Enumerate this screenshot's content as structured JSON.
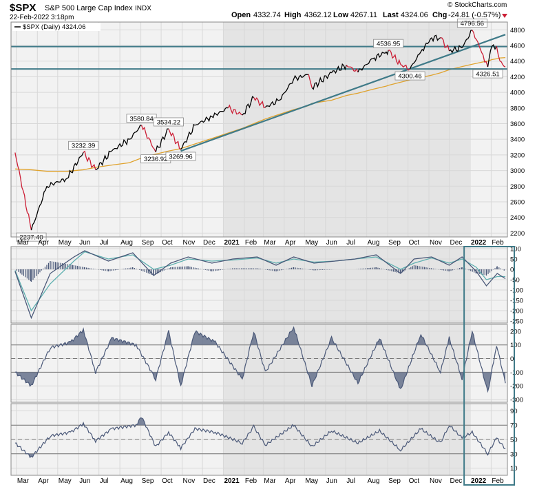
{
  "header": {
    "symbol": "$SPX",
    "name": "S&P 500 Large Cap Index",
    "exchange": "INDX",
    "date": "22-Feb-2022 3:18pm",
    "open_label": "Open",
    "open": "4332.74",
    "high_label": "High",
    "high": "4362.12",
    "low_label": "Low",
    "low": "4267.11",
    "last_label": "Last",
    "last": "4324.06",
    "chg_label": "Chg",
    "chg": "-24.81 (-0.57%)",
    "watermark": "© StockCharts.com"
  },
  "legend": {
    "label": "$SPX (Daily) 4324.06"
  },
  "colors": {
    "price_up": "#000000",
    "price_down": "#cc1f36",
    "ma": "#e0a32e",
    "trendline": "#3f7a88",
    "indicator_line": "#4a5878",
    "indicator_fill": "#66728c",
    "shade_dark": "#e4e4e4",
    "shade_light": "#f2f2f2",
    "highlight_box": "#3f7a88"
  },
  "x_axis": {
    "top_labels": [
      "Mar",
      "Apr",
      "May",
      "Jun",
      "Jul",
      "Aug",
      "Sep",
      "Oct",
      "Nov",
      "Dec",
      "2021",
      "Feb",
      "Mar",
      "Apr",
      "May",
      "Jun",
      "Jul",
      "Aug",
      "Sep",
      "Oct",
      "Nov",
      "Dec",
      "2022",
      "Feb"
    ],
    "bottom_labels": [
      "Mar",
      "Apr",
      "May",
      "Jun",
      "Jul",
      "Aug",
      "Sep",
      "Oct",
      "Nov",
      "Dec",
      "2021",
      "Feb",
      "Mar",
      "Apr",
      "May",
      "Jun",
      "Jul",
      "Aug",
      "Sep",
      "Oct",
      "Nov",
      "Dec",
      "2022",
      "Feb"
    ]
  },
  "chart_data": [
    {
      "type": "line",
      "panel": "price",
      "y_ticks": [
        "4800",
        "4600",
        "4400",
        "4200",
        "4000",
        "3800",
        "3600",
        "3400",
        "3200",
        "3000",
        "2800",
        "2600",
        "2400",
        "2200"
      ],
      "ylim": [
        2150,
        4900
      ],
      "x": [
        "2020-02-28",
        "2020-03-23",
        "2020-04-15",
        "2020-05-15",
        "2020-06-08",
        "2020-06-26",
        "2020-07-20",
        "2020-08-15",
        "2020-09-02",
        "2020-09-23",
        "2020-10-12",
        "2020-10-30",
        "2020-11-20",
        "2020-12-15",
        "2021-01-08",
        "2021-01-29",
        "2021-02-15",
        "2021-03-04",
        "2021-03-25",
        "2021-04-15",
        "2021-05-07",
        "2021-05-12",
        "2021-06-10",
        "2021-07-02",
        "2021-07-19",
        "2021-08-10",
        "2021-08-30",
        "2021-09-02",
        "2021-09-20",
        "2021-10-04",
        "2021-10-20",
        "2021-11-05",
        "2021-11-18",
        "2021-12-01",
        "2021-12-20",
        "2022-01-04",
        "2022-01-20",
        "2022-01-27",
        "2022-02-02",
        "2022-02-09",
        "2022-02-14",
        "2022-02-22"
      ],
      "series": [
        {
          "values": [
            3230,
            2237,
            2800,
            2900,
            3232,
            3010,
            3250,
            3400,
            3580,
            3237,
            3534,
            3270,
            3580,
            3690,
            3800,
            3710,
            3934,
            3810,
            3900,
            4170,
            4230,
            4060,
            4250,
            4350,
            4258,
            4430,
            4520,
            4537,
            4357,
            4300,
            4520,
            4700,
            4700,
            4530,
            4570,
            4797,
            4480,
            4326,
            4590,
            4590,
            4400,
            4324
          ]
        },
        {
          "values": [
            3020,
            3010,
            2990,
            2990,
            3010,
            3040,
            3070,
            3100,
            3160,
            3210,
            3250,
            3280,
            3340,
            3410,
            3480,
            3540,
            3600,
            3660,
            3720,
            3780,
            3830,
            3860,
            3900,
            3960,
            3990,
            4040,
            4080,
            4090,
            4130,
            4160,
            4190,
            4220,
            4250,
            4290,
            4330,
            4360,
            4390,
            4400,
            4420,
            4430,
            4440,
            4445
          ]
        }
      ],
      "annotations": [
        "2237.40",
        "3232.39",
        "3580.84",
        "3534.22",
        "3236.92",
        "3269.96",
        "4536.95",
        "4300.46",
        "4796.56",
        "4326.51"
      ],
      "horizontal_lines": [
        4586,
        4300
      ],
      "trendline": {
        "from": [
          "2020-10-30",
          3250
        ],
        "to": [
          "2022-02-22",
          4740
        ]
      }
    },
    {
      "type": "line",
      "panel": "indicator_1",
      "y_ticks": [
        "100",
        "50",
        "0",
        "-50",
        "-100",
        "-150",
        "-200",
        "-250"
      ],
      "ylim": [
        -260,
        110
      ],
      "x": [
        "2020-02-28",
        "2020-03-23",
        "2020-04-20",
        "2020-05-25",
        "2020-06-10",
        "2020-07-15",
        "2020-08-20",
        "2020-09-20",
        "2020-10-15",
        "2020-11-10",
        "2020-12-15",
        "2021-01-15",
        "2021-02-20",
        "2021-03-20",
        "2021-04-15",
        "2021-05-15",
        "2021-06-15",
        "2021-07-15",
        "2021-08-15",
        "2021-09-20",
        "2021-10-10",
        "2021-11-05",
        "2021-12-01",
        "2021-12-20",
        "2022-01-10",
        "2022-01-25",
        "2022-02-10",
        "2022-02-22"
      ],
      "series": [
        {
          "values": [
            -10,
            -235,
            -20,
            60,
            90,
            40,
            80,
            -30,
            30,
            60,
            30,
            50,
            60,
            20,
            60,
            30,
            40,
            50,
            70,
            -20,
            50,
            60,
            20,
            60,
            -10,
            -80,
            -20,
            -45
          ]
        },
        {
          "values": [
            -5,
            -200,
            -70,
            40,
            85,
            50,
            70,
            0,
            20,
            50,
            40,
            45,
            55,
            30,
            50,
            35,
            40,
            50,
            60,
            0,
            30,
            55,
            30,
            50,
            10,
            -50,
            -35,
            -35
          ]
        },
        {
          "values": [
            0,
            -60,
            40,
            20,
            10,
            -10,
            10,
            -30,
            10,
            15,
            -10,
            5,
            5,
            -10,
            10,
            -5,
            0,
            0,
            10,
            -20,
            20,
            5,
            -10,
            10,
            -20,
            -30,
            15,
            -10
          ]
        }
      ]
    },
    {
      "type": "area",
      "panel": "indicator_2",
      "y_ticks": [
        "200",
        "100",
        "0",
        "-100",
        "-200",
        "-300"
      ],
      "ylim": [
        -320,
        250
      ],
      "x": [
        "2020-02-28",
        "2020-03-23",
        "2020-04-20",
        "2020-05-20",
        "2020-06-08",
        "2020-06-26",
        "2020-07-20",
        "2020-08-25",
        "2020-09-23",
        "2020-10-12",
        "2020-10-30",
        "2020-11-20",
        "2020-12-20",
        "2021-01-29",
        "2021-02-15",
        "2021-03-04",
        "2021-04-15",
        "2021-05-12",
        "2021-06-10",
        "2021-07-19",
        "2021-08-20",
        "2021-09-20",
        "2021-10-20",
        "2021-11-18",
        "2021-12-01",
        "2021-12-20",
        "2022-01-04",
        "2022-01-27",
        "2022-02-09",
        "2022-02-22"
      ],
      "series": [
        {
          "values": [
            -100,
            -200,
            80,
            120,
            210,
            -100,
            150,
            100,
            -150,
            200,
            -200,
            200,
            120,
            -150,
            200,
            -100,
            230,
            -200,
            150,
            -180,
            150,
            -230,
            180,
            -100,
            150,
            -150,
            200,
            -250,
            100,
            -180
          ]
        }
      ],
      "reference_lines": [
        100,
        0,
        -100
      ]
    },
    {
      "type": "area",
      "panel": "indicator_3",
      "y_ticks": [
        "90",
        "70",
        "50",
        "30",
        "10"
      ],
      "ylim": [
        0,
        100
      ],
      "x": [
        "2020-02-28",
        "2020-03-23",
        "2020-04-20",
        "2020-05-20",
        "2020-06-08",
        "2020-06-26",
        "2020-07-20",
        "2020-08-25",
        "2020-09-02",
        "2020-09-23",
        "2020-10-12",
        "2020-10-30",
        "2020-11-20",
        "2020-12-20",
        "2021-01-29",
        "2021-02-15",
        "2021-03-04",
        "2021-04-15",
        "2021-05-12",
        "2021-06-10",
        "2021-07-19",
        "2021-08-20",
        "2021-09-20",
        "2021-10-20",
        "2021-11-18",
        "2021-12-01",
        "2021-12-20",
        "2022-01-04",
        "2022-01-27",
        "2022-02-09",
        "2022-02-22"
      ],
      "series": [
        {
          "values": [
            45,
            25,
            55,
            60,
            72,
            48,
            65,
            70,
            82,
            40,
            60,
            38,
            65,
            60,
            45,
            68,
            42,
            70,
            40,
            62,
            45,
            62,
            35,
            65,
            45,
            70,
            52,
            60,
            30,
            52,
            37
          ]
        }
      ],
      "reference_lines": [
        70,
        50,
        30
      ]
    }
  ]
}
